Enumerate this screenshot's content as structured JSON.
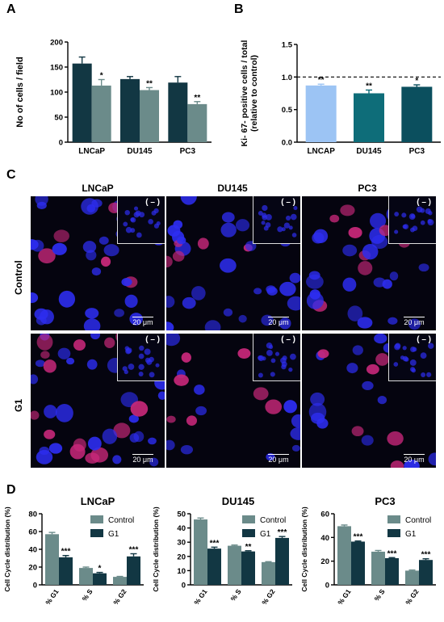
{
  "panels": {
    "A": "A",
    "B": "B",
    "C": "C",
    "D": "D"
  },
  "colors": {
    "dark_teal": "#123743",
    "gray_teal": "#6b8b8a",
    "light_blue": "#9cc4f4",
    "mid_teal": "#0e6d79",
    "deep_teal": "#0b4f5e",
    "nucleus_blue": "#2d2df0",
    "ki67_magenta": "#c8287a"
  },
  "chart_data": [
    {
      "id": "A",
      "type": "bar",
      "ylabel": "No of cells / field",
      "xlabel": "",
      "ylim": [
        0,
        200
      ],
      "yticks": [
        "0",
        "50",
        "100",
        "150",
        "200"
      ],
      "categories": [
        "LNCaP",
        "DU145",
        "PC3"
      ],
      "series": [
        {
          "values": [
            157,
            126,
            119
          ],
          "errors": [
            13,
            5,
            12
          ],
          "sig": [
            "",
            "",
            ""
          ]
        },
        {
          "values": [
            113,
            104,
            76
          ],
          "errors": [
            12,
            5,
            5
          ],
          "sig": [
            "*",
            "**",
            "**"
          ]
        }
      ]
    },
    {
      "id": "B",
      "type": "bar",
      "ylabel": "Ki- 67- positive cells / total",
      "ylabel2": "(relative to control)",
      "xlabel": "",
      "ylim": [
        0,
        1.5
      ],
      "yticks": [
        "0.0",
        "0.5",
        "1.0",
        "1.5"
      ],
      "reference_line": 1.0,
      "categories": [
        "LNCAP",
        "DU145",
        "PC3"
      ],
      "series": [
        {
          "values": [
            0.87,
            0.75,
            0.85
          ],
          "errors": [
            0.02,
            0.05,
            0.03
          ],
          "sig": [
            "**",
            "**",
            "*"
          ]
        }
      ]
    },
    {
      "id": "D1",
      "type": "bar",
      "title": "LNCaP",
      "ylabel": "Cell Cycle distribution (%)",
      "ylim": [
        0,
        80
      ],
      "yticks": [
        "0",
        "20",
        "40",
        "60",
        "80"
      ],
      "categories": [
        "% G1",
        "% S",
        "% G2"
      ],
      "series": [
        {
          "name": "Control",
          "values": [
            57,
            19,
            9
          ],
          "errors": [
            2,
            1,
            0.5
          ],
          "sig": [
            "",
            "",
            ""
          ]
        },
        {
          "name": "G1",
          "values": [
            31,
            13,
            32
          ],
          "errors": [
            2,
            1,
            3
          ],
          "sig": [
            "***",
            "*",
            "***"
          ]
        }
      ]
    },
    {
      "id": "D2",
      "type": "bar",
      "title": "DU145",
      "ylabel": "Cell Cycle distribution (%)",
      "ylim": [
        0,
        50
      ],
      "yticks": [
        "0",
        "10",
        "20",
        "30",
        "40",
        "50"
      ],
      "categories": [
        "% G1",
        "% S",
        "% G2"
      ],
      "series": [
        {
          "name": "Control",
          "values": [
            46,
            27.5,
            16
          ],
          "errors": [
            1,
            0.5,
            0.3
          ],
          "sig": [
            "",
            "",
            ""
          ]
        },
        {
          "name": "G1",
          "values": [
            25.5,
            23.5,
            33
          ],
          "errors": [
            1,
            0.5,
            1
          ],
          "sig": [
            "***",
            "**",
            "***"
          ]
        }
      ]
    },
    {
      "id": "D3",
      "type": "bar",
      "title": "PC3",
      "ylabel": "Cell Cycle distribution (%)",
      "ylim": [
        0,
        60
      ],
      "yticks": [
        "0",
        "20",
        "40",
        "60"
      ],
      "categories": [
        "% G1",
        "% S",
        "% G2"
      ],
      "series": [
        {
          "name": "Control",
          "values": [
            49.5,
            28,
            12
          ],
          "errors": [
            1,
            1,
            0.5
          ],
          "sig": [
            "",
            "",
            ""
          ]
        },
        {
          "name": "G1",
          "values": [
            36.5,
            22.5,
            21
          ],
          "errors": [
            0.5,
            0.5,
            1
          ],
          "sig": [
            "***",
            "***",
            "***"
          ]
        }
      ]
    }
  ],
  "micrographs": {
    "columns": [
      "LNCaP",
      "DU145",
      "PC3"
    ],
    "rows": [
      "Control",
      "G1"
    ],
    "inset_label": "( – )",
    "scale_label": "20 μm"
  },
  "legend": {
    "control": "Control",
    "g1": "G1"
  }
}
